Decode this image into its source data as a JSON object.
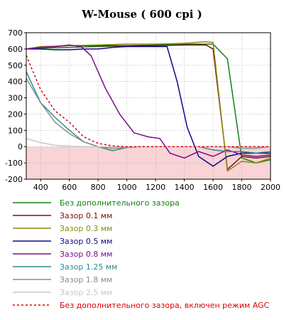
{
  "chart_data": {
    "type": "line",
    "title": "W-Mouse ( 600 cpi )",
    "xlabel": "",
    "ylabel": "",
    "xlim": [
      300,
      2000
    ],
    "ylim": [
      -200,
      700
    ],
    "x_ticks": [
      400,
      600,
      800,
      1000,
      1200,
      1400,
      1600,
      1800,
      2000
    ],
    "y_ticks": [
      700,
      600,
      500,
      400,
      300,
      200,
      100,
      0,
      -100,
      -200
    ],
    "negative_region_color": "#f9d3d6",
    "grid": true,
    "legend_placement": "bottom",
    "series": [
      {
        "name": "Без дополнительного зазора",
        "color": "#138013",
        "dash": false,
        "points": [
          [
            300,
            600
          ],
          [
            400,
            605
          ],
          [
            600,
            610
          ],
          [
            800,
            615
          ],
          [
            1000,
            620
          ],
          [
            1200,
            625
          ],
          [
            1400,
            630
          ],
          [
            1600,
            630
          ],
          [
            1700,
            540
          ],
          [
            1800,
            -70
          ],
          [
            1900,
            -100
          ],
          [
            2000,
            -80
          ]
        ]
      },
      {
        "name": "Зазор 0.1 мм",
        "color": "#7a0d0d",
        "dash": false,
        "points": [
          [
            300,
            600
          ],
          [
            400,
            610
          ],
          [
            600,
            620
          ],
          [
            800,
            620
          ],
          [
            1000,
            620
          ],
          [
            1200,
            620
          ],
          [
            1400,
            625
          ],
          [
            1550,
            625
          ],
          [
            1600,
            600
          ],
          [
            1700,
            -140
          ],
          [
            1800,
            -60
          ],
          [
            1900,
            -70
          ],
          [
            2000,
            -60
          ]
        ]
      },
      {
        "name": "Зазор 0.3 мм",
        "color": "#8c8c0a",
        "dash": false,
        "points": [
          [
            300,
            600
          ],
          [
            400,
            615
          ],
          [
            600,
            620
          ],
          [
            800,
            625
          ],
          [
            1000,
            630
          ],
          [
            1200,
            630
          ],
          [
            1400,
            635
          ],
          [
            1550,
            645
          ],
          [
            1600,
            640
          ],
          [
            1700,
            -150
          ],
          [
            1800,
            -90
          ],
          [
            1900,
            -100
          ],
          [
            2000,
            -70
          ]
        ]
      },
      {
        "name": "Зазор 0.5 мм",
        "color": "#0a0a8c",
        "dash": false,
        "points": [
          [
            300,
            600
          ],
          [
            400,
            600
          ],
          [
            500,
            595
          ],
          [
            600,
            595
          ],
          [
            700,
            600
          ],
          [
            800,
            600
          ],
          [
            900,
            610
          ],
          [
            1000,
            615
          ],
          [
            1100,
            615
          ],
          [
            1200,
            615
          ],
          [
            1280,
            615
          ],
          [
            1350,
            400
          ],
          [
            1420,
            120
          ],
          [
            1500,
            -60
          ],
          [
            1600,
            -120
          ],
          [
            1700,
            -60
          ],
          [
            1800,
            -40
          ],
          [
            1900,
            -40
          ],
          [
            2000,
            -40
          ]
        ]
      },
      {
        "name": "Зазор 0.8 мм",
        "color": "#7a0d8c",
        "dash": false,
        "points": [
          [
            300,
            600
          ],
          [
            400,
            610
          ],
          [
            500,
            615
          ],
          [
            600,
            625
          ],
          [
            680,
            615
          ],
          [
            750,
            560
          ],
          [
            850,
            360
          ],
          [
            950,
            200
          ],
          [
            1050,
            85
          ],
          [
            1150,
            60
          ],
          [
            1230,
            50
          ],
          [
            1300,
            -40
          ],
          [
            1400,
            -70
          ],
          [
            1500,
            -30
          ],
          [
            1600,
            -60
          ],
          [
            1700,
            -20
          ],
          [
            1800,
            -50
          ],
          [
            1900,
            -60
          ],
          [
            2000,
            -50
          ]
        ]
      },
      {
        "name": "Зазор 1.25 мм",
        "color": "#2a8c8c",
        "dash": false,
        "points": [
          [
            300,
            460
          ],
          [
            400,
            270
          ],
          [
            500,
            180
          ],
          [
            600,
            100
          ],
          [
            700,
            30
          ],
          [
            800,
            0
          ],
          [
            900,
            -25
          ],
          [
            1000,
            -5
          ],
          [
            1100,
            0
          ],
          [
            1200,
            0
          ],
          [
            1300,
            0
          ],
          [
            1400,
            0
          ],
          [
            1500,
            0
          ],
          [
            1600,
            -20
          ],
          [
            1700,
            -30
          ],
          [
            1800,
            -30
          ],
          [
            1900,
            -40
          ],
          [
            2000,
            -30
          ]
        ]
      },
      {
        "name": "Зазор 1.8 мм",
        "color": "#8c8c8c",
        "dash": false,
        "points": [
          [
            300,
            420
          ],
          [
            400,
            270
          ],
          [
            500,
            150
          ],
          [
            600,
            80
          ],
          [
            700,
            30
          ],
          [
            800,
            0
          ],
          [
            900,
            -10
          ],
          [
            1000,
            -5
          ],
          [
            1100,
            0
          ],
          [
            1200,
            0
          ],
          [
            1300,
            0
          ],
          [
            1400,
            0
          ],
          [
            1500,
            0
          ],
          [
            1600,
            0
          ],
          [
            1700,
            0
          ],
          [
            1800,
            -10
          ],
          [
            1900,
            -10
          ],
          [
            2000,
            0
          ]
        ]
      },
      {
        "name": "Зазор 2.5 мм",
        "color": "#c8c8c8",
        "dash": false,
        "points": [
          [
            300,
            50
          ],
          [
            400,
            25
          ],
          [
            500,
            8
          ],
          [
            600,
            3
          ],
          [
            700,
            0
          ],
          [
            800,
            0
          ],
          [
            1000,
            0
          ],
          [
            1200,
            0
          ],
          [
            1400,
            0
          ],
          [
            1600,
            0
          ],
          [
            1800,
            0
          ],
          [
            2000,
            0
          ]
        ]
      },
      {
        "name": "Без дополнительного зазора, включен режим AGC",
        "color": "#e00000",
        "dash": true,
        "points": [
          [
            300,
            560
          ],
          [
            400,
            350
          ],
          [
            500,
            220
          ],
          [
            600,
            150
          ],
          [
            700,
            60
          ],
          [
            800,
            20
          ],
          [
            900,
            5
          ],
          [
            1000,
            0
          ],
          [
            1100,
            0
          ],
          [
            1200,
            0
          ],
          [
            1400,
            0
          ],
          [
            1600,
            0
          ],
          [
            1800,
            0
          ],
          [
            2000,
            0
          ]
        ]
      }
    ]
  }
}
